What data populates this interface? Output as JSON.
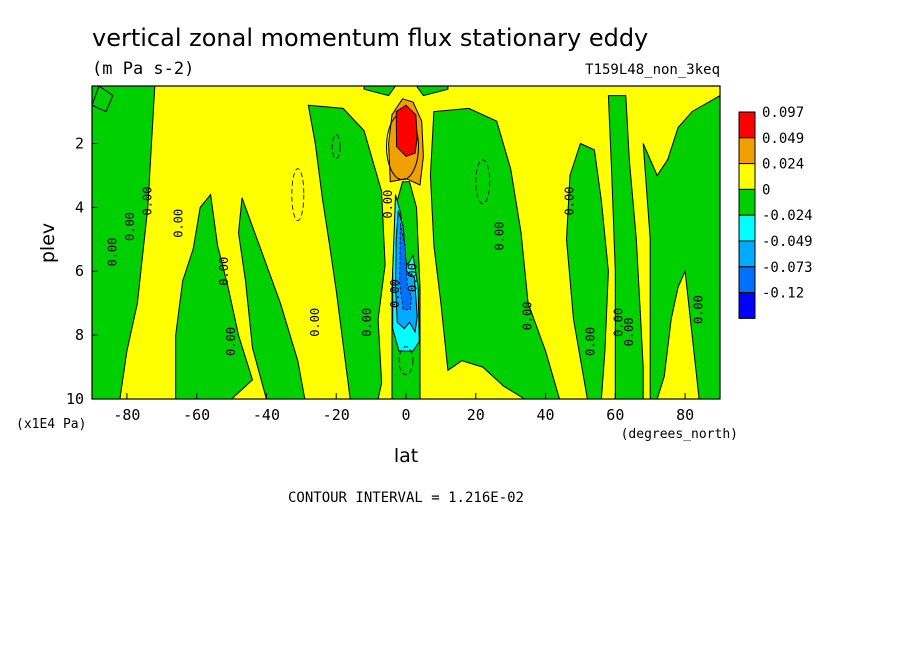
{
  "chart_data": {
    "type": "heatmap",
    "title": "vertical zonal momentum flux stationary eddy",
    "units": "(m Pa s-2)",
    "run_label": "T159L48_non_3keq",
    "xlabel": "lat",
    "x_units": "(degrees_north)",
    "ylabel": "plev",
    "y_units": "(x1E4 Pa)",
    "xlim": [
      -90,
      90
    ],
    "ylim": [
      10,
      0.2
    ],
    "x_ticks": [
      -80,
      -60,
      -40,
      -20,
      0,
      20,
      40,
      60,
      80
    ],
    "x_tick_labels": [
      "-80",
      "-60",
      "-40",
      "-20",
      "0",
      "20",
      "40",
      "60",
      "80"
    ],
    "y_ticks": [
      2,
      4,
      6,
      8,
      10
    ],
    "y_tick_labels": [
      "2",
      "4",
      "6",
      "8",
      "10"
    ],
    "contour_interval_text": "CONTOUR INTERVAL = 1.216E-02",
    "contour_label": "0.00",
    "legend": {
      "placement": "right",
      "levels": [
        "0.097",
        "0.049",
        "0.024",
        "0",
        "-0.024",
        "-0.049",
        "-0.073",
        "-0.12"
      ],
      "colors": [
        "#ff0000",
        "#f0a000",
        "#ffff00",
        "#00d000",
        "#00ffff",
        "#00aaff",
        "#0070ff",
        "#0000ff"
      ]
    },
    "features": [
      {
        "name": "equatorial positive maximum",
        "lat": 0,
        "plev": 1.6,
        "value": 0.097
      },
      {
        "name": "equatorial negative minimum",
        "lat": 0,
        "plev": 6.5,
        "value": -0.073
      }
    ]
  }
}
